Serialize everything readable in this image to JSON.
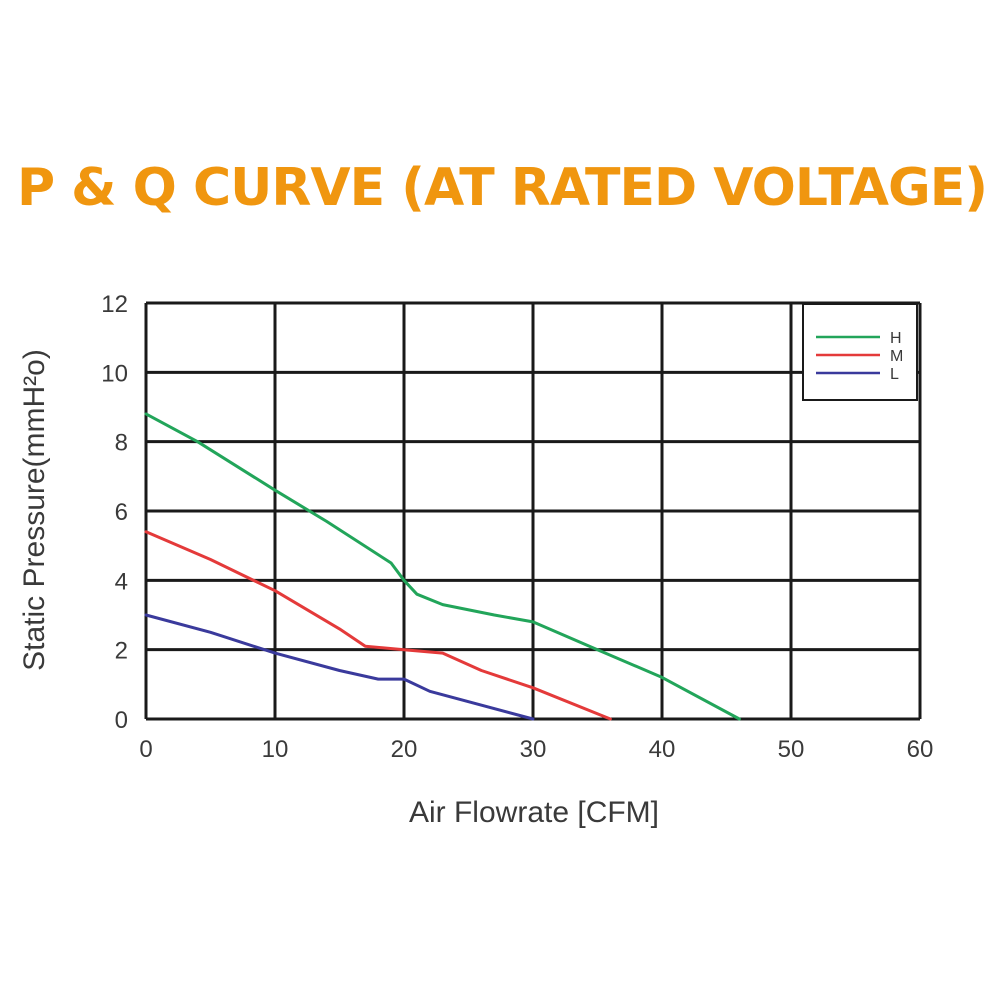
{
  "colors": {
    "title": "#f0960f",
    "grid": "#1a1a1a",
    "H": "#22a55a",
    "M": "#e43a3a",
    "L": "#3a3a9c"
  },
  "chart_data": {
    "type": "line",
    "title": "P & Q CURVE (AT RATED VOLTAGE)",
    "xlabel": "Air  Flowrate   [CFM]",
    "ylabel": "Static Pressure(mmH²o)",
    "xlim": [
      0,
      60
    ],
    "ylim": [
      0,
      12
    ],
    "xticks": [
      "0",
      "10",
      "20",
      "30",
      "40",
      "50",
      "60"
    ],
    "yticks": [
      "0",
      "2",
      "4",
      "6",
      "8",
      "10",
      "12"
    ],
    "grid": true,
    "legend_position": "top-right",
    "series": [
      {
        "name": "H",
        "color": "#22a55a",
        "x": [
          0,
          4,
          10,
          14,
          19,
          20,
          21,
          23,
          27,
          30,
          35,
          40,
          46
        ],
        "y": [
          8.8,
          8.0,
          6.6,
          5.7,
          4.5,
          4.0,
          3.6,
          3.3,
          3.0,
          2.8,
          2.0,
          1.2,
          0
        ]
      },
      {
        "name": "M",
        "color": "#e43a3a",
        "x": [
          0,
          5,
          10,
          15,
          17,
          20,
          23,
          26,
          30,
          36
        ],
        "y": [
          5.4,
          4.6,
          3.7,
          2.6,
          2.1,
          2.0,
          1.9,
          1.4,
          0.9,
          0
        ]
      },
      {
        "name": "L",
        "color": "#3a3a9c",
        "x": [
          0,
          5,
          10,
          15,
          18,
          20,
          22,
          25,
          30
        ],
        "y": [
          3.0,
          2.5,
          1.9,
          1.4,
          1.15,
          1.15,
          0.8,
          0.5,
          0
        ]
      }
    ]
  }
}
